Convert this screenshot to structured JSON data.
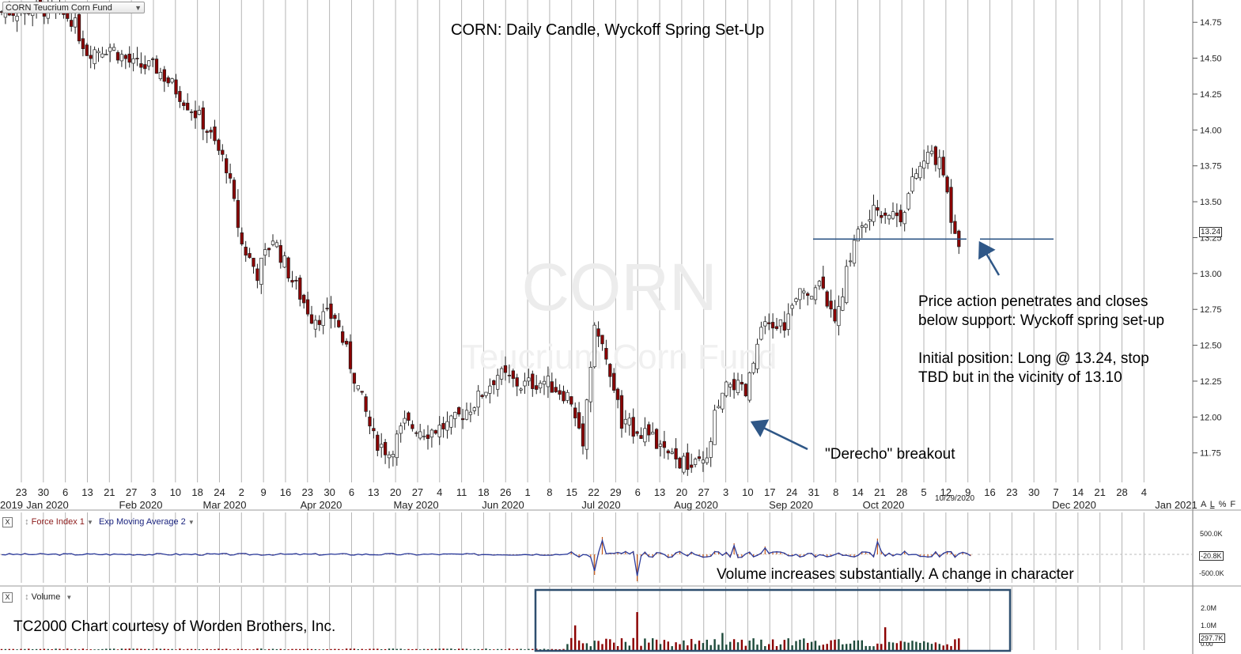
{
  "symbol_box": {
    "label": "CORN Teucrium Corn Fund"
  },
  "watermark": {
    "symbol": "CORN",
    "name": "Teucrium Corn Fund"
  },
  "colors": {
    "up": "#ffffff",
    "down": "#8b0000",
    "support": "#2f5787",
    "arrow": "#2f5787",
    "volume_up": "#1d4a3a",
    "volume_down": "#8b0000",
    "force": "#c85a17",
    "ema": "#2b3a9a",
    "grid": "#b5b5b5",
    "box": "#2f4f6f"
  },
  "chart_data": [
    {
      "type": "candlestick",
      "title": "CORN:  Daily Candle, Wyckoff Spring Set-Up",
      "ylim": [
        11.55,
        14.9
      ],
      "y_ticks": [
        "14.75",
        "14.50",
        "14.25",
        "14.00",
        "13.75",
        "13.50",
        "13.25",
        "13.00",
        "12.75",
        "12.50",
        "12.25",
        "12.00",
        "11.75"
      ],
      "last_price_label": "13.24",
      "cursor_date": "10/29/2020",
      "support_level": 13.24,
      "day_ticks": [
        "23",
        "30",
        "6",
        "13",
        "21",
        "27",
        "3",
        "10",
        "18",
        "24",
        "2",
        "9",
        "16",
        "23",
        "30",
        "6",
        "13",
        "20",
        "27",
        "4",
        "11",
        "18",
        "26",
        "1",
        "8",
        "15",
        "22",
        "29",
        "6",
        "13",
        "20",
        "27",
        "3",
        "10",
        "17",
        "24",
        "31",
        "8",
        "14",
        "21",
        "28",
        "5",
        "12",
        "9",
        "16",
        "23",
        "30",
        "7",
        "14",
        "21",
        "28",
        "4"
      ],
      "month_ticks": [
        "2019",
        "Jan 2020",
        "Feb 2020",
        "Mar 2020",
        "Apr 2020",
        "May 2020",
        "Jun 2020",
        "Jul 2020",
        "Aug 2020",
        "Sep 2020",
        "Oct 2020",
        "Dec 2020",
        "Jan 2021"
      ],
      "scale_buttons": [
        "A",
        "L",
        "%",
        "F"
      ],
      "annotations": [
        "Price action penetrates and closes",
        "below support:  Wyckoff spring set-up",
        "Initial position:  Long @ 13.24, stop",
        "TBD but in the vicinity of 13.10",
        "\"Derecho\" breakout"
      ]
    },
    {
      "type": "line",
      "series": [
        {
          "name": "Force Index 1"
        },
        {
          "name": "Exp Moving Average 2"
        }
      ],
      "y_ticks": [
        "500.0K",
        "-500.0K"
      ],
      "last_value_label": "-20.8K",
      "annotation": "Volume increases substantially.  A change in character"
    },
    {
      "type": "bar",
      "series": [
        {
          "name": "Volume"
        }
      ],
      "y_ticks": [
        "2.0M",
        "1.0M",
        "0.00"
      ],
      "last_value_label": "297.7K",
      "annotation": "TC2000 Chart courtesy of Worden Brothers, Inc."
    }
  ]
}
